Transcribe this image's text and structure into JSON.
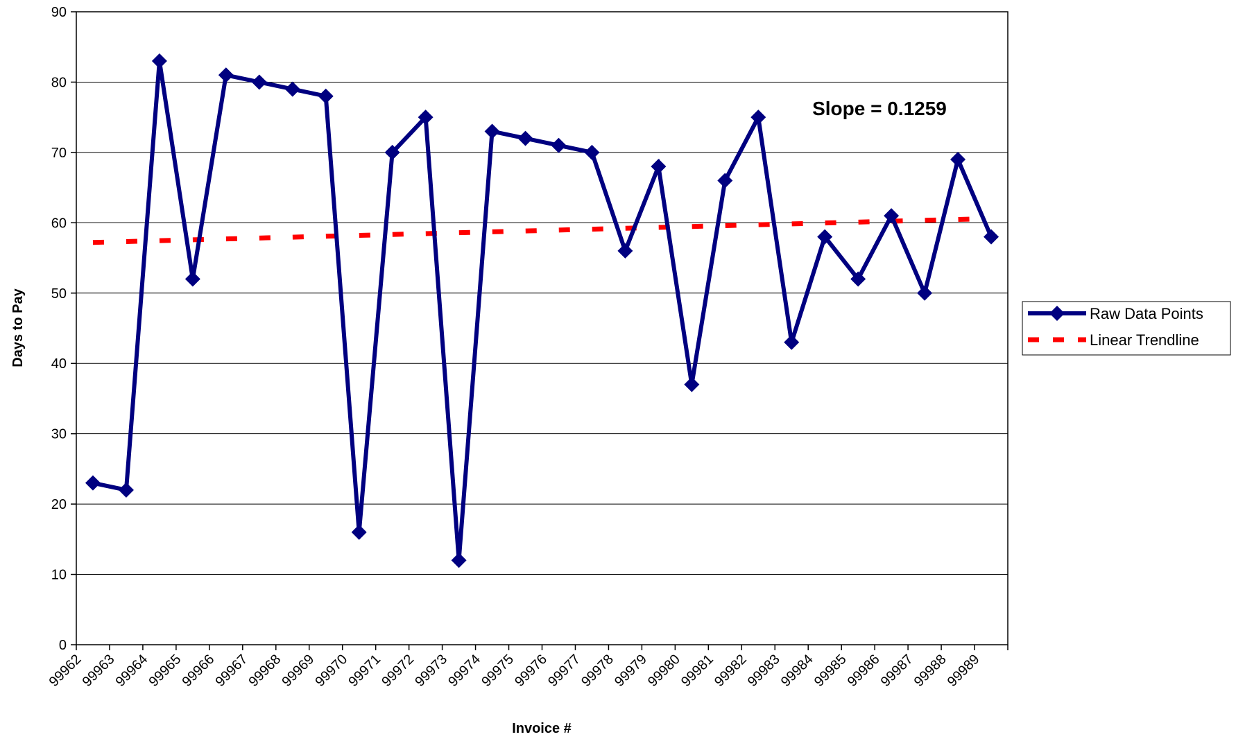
{
  "chart_data": {
    "type": "line",
    "xlabel": "Invoice #",
    "ylabel": "Days to Pay",
    "ylim": [
      0,
      90
    ],
    "yticks": [
      0,
      10,
      20,
      30,
      40,
      50,
      60,
      70,
      80,
      90
    ],
    "grid": true,
    "legend_position": "right",
    "categories": [
      "99962",
      "99963",
      "99964",
      "99965",
      "99966",
      "99967",
      "99968",
      "99969",
      "99970",
      "99971",
      "99972",
      "99973",
      "99974",
      "99975",
      "99976",
      "99977",
      "99978",
      "99979",
      "99980",
      "99981",
      "99982",
      "99983",
      "99984",
      "99985",
      "99986",
      "99987",
      "99988",
      "99989"
    ],
    "series": [
      {
        "name": "Raw Data Points",
        "color": "#000080",
        "style": "solid-with-diamond-markers",
        "values": [
          23,
          22,
          83,
          52,
          81,
          80,
          79,
          78,
          16,
          70,
          75,
          12,
          73,
          72,
          71,
          70,
          56,
          68,
          37,
          66,
          75,
          43,
          58,
          52,
          61,
          50,
          69,
          58
        ]
      },
      {
        "name": "Linear Trendline",
        "color": "#ff0000",
        "style": "dashed",
        "start": 57.2,
        "end": 60.6
      }
    ],
    "annotations": [
      {
        "text": "Slope = 0.1259"
      }
    ]
  }
}
